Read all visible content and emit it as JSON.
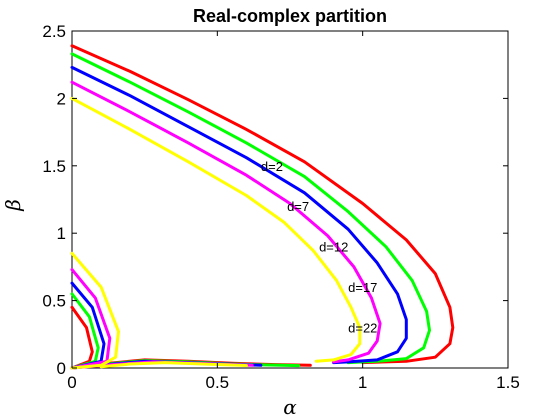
{
  "chart_data": {
    "type": "line",
    "title": "Real-complex partition",
    "xlabel": "α",
    "ylabel": "β",
    "xlim": [
      0,
      1.5
    ],
    "ylim": [
      0,
      2.5
    ],
    "xticks": [
      0,
      0.5,
      1,
      1.5
    ],
    "xtick_labels": [
      "0",
      "0.5",
      "1",
      "1.5"
    ],
    "yticks": [
      0,
      0.5,
      1,
      1.5,
      2,
      2.5
    ],
    "ytick_labels": [
      "0",
      "0.5",
      "1",
      "1.5",
      "2",
      "2.5"
    ],
    "grid": false,
    "legend": "none",
    "series": [
      {
        "name": "d=2",
        "color": "#ff0000",
        "branches": [
          [
            [
              0,
              2.39
            ],
            [
              0.2,
              2.2
            ],
            [
              0.4,
              1.99
            ],
            [
              0.6,
              1.77
            ],
            [
              0.8,
              1.53
            ],
            [
              1.0,
              1.22
            ],
            [
              1.15,
              0.95
            ],
            [
              1.25,
              0.7
            ],
            [
              1.3,
              0.45
            ],
            [
              1.31,
              0.3
            ],
            [
              1.3,
              0.18
            ],
            [
              1.25,
              0.08
            ],
            [
              1.15,
              0.05
            ],
            [
              1.0,
              0.04
            ]
          ],
          [
            [
              0,
              0.45
            ],
            [
              0.05,
              0.3
            ],
            [
              0.07,
              0.12
            ],
            [
              0.06,
              0.05
            ],
            [
              0,
              0
            ]
          ],
          [
            [
              0,
              0
            ],
            [
              0.1,
              0.03
            ],
            [
              0.25,
              0.06
            ],
            [
              0.4,
              0.05
            ],
            [
              0.55,
              0.035
            ],
            [
              0.7,
              0.025
            ],
            [
              0.82,
              0.02
            ]
          ]
        ]
      },
      {
        "name": "d=7",
        "color": "#00ff00",
        "branches": [
          [
            [
              0,
              2.33
            ],
            [
              0.2,
              2.12
            ],
            [
              0.4,
              1.9
            ],
            [
              0.6,
              1.67
            ],
            [
              0.8,
              1.42
            ],
            [
              0.95,
              1.16
            ],
            [
              1.08,
              0.9
            ],
            [
              1.17,
              0.65
            ],
            [
              1.22,
              0.42
            ],
            [
              1.23,
              0.28
            ],
            [
              1.21,
              0.15
            ],
            [
              1.15,
              0.07
            ],
            [
              1.05,
              0.05
            ],
            [
              0.95,
              0.04
            ]
          ],
          [
            [
              0,
              0.55
            ],
            [
              0.06,
              0.38
            ],
            [
              0.09,
              0.15
            ],
            [
              0.08,
              0.05
            ],
            [
              0,
              0
            ]
          ],
          [
            [
              0,
              0
            ],
            [
              0.12,
              0.03
            ],
            [
              0.25,
              0.055
            ],
            [
              0.4,
              0.045
            ],
            [
              0.55,
              0.03
            ],
            [
              0.68,
              0.022
            ],
            [
              0.78,
              0.018
            ]
          ]
        ]
      },
      {
        "name": "d=12",
        "color": "#0000ff",
        "branches": [
          [
            [
              0,
              2.23
            ],
            [
              0.2,
              2.02
            ],
            [
              0.4,
              1.79
            ],
            [
              0.6,
              1.56
            ],
            [
              0.8,
              1.3
            ],
            [
              0.95,
              1.03
            ],
            [
              1.05,
              0.78
            ],
            [
              1.12,
              0.55
            ],
            [
              1.15,
              0.36
            ],
            [
              1.15,
              0.22
            ],
            [
              1.12,
              0.12
            ],
            [
              1.05,
              0.06
            ],
            [
              0.95,
              0.045
            ],
            [
              0.9,
              0.04
            ]
          ],
          [
            [
              0,
              0.63
            ],
            [
              0.07,
              0.45
            ],
            [
              0.11,
              0.18
            ],
            [
              0.1,
              0.05
            ],
            [
              0,
              0
            ]
          ],
          [
            [
              0,
              0
            ],
            [
              0.12,
              0.025
            ],
            [
              0.25,
              0.05
            ],
            [
              0.4,
              0.04
            ],
            [
              0.55,
              0.028
            ],
            [
              0.65,
              0.02
            ]
          ]
        ]
      },
      {
        "name": "d=17",
        "color": "#ff00ff",
        "branches": [
          [
            [
              0,
              2.12
            ],
            [
              0.2,
              1.9
            ],
            [
              0.4,
              1.67
            ],
            [
              0.6,
              1.43
            ],
            [
              0.75,
              1.22
            ],
            [
              0.88,
              0.98
            ],
            [
              0.97,
              0.75
            ],
            [
              1.03,
              0.52
            ],
            [
              1.06,
              0.33
            ],
            [
              1.05,
              0.2
            ],
            [
              1.02,
              0.11
            ],
            [
              0.95,
              0.06
            ],
            [
              0.9,
              0.045
            ]
          ],
          [
            [
              0,
              0.73
            ],
            [
              0.08,
              0.52
            ],
            [
              0.13,
              0.22
            ],
            [
              0.12,
              0.05
            ],
            [
              0,
              0
            ]
          ],
          [
            [
              0,
              0
            ],
            [
              0.14,
              0.025
            ],
            [
              0.28,
              0.045
            ],
            [
              0.42,
              0.035
            ],
            [
              0.55,
              0.025
            ],
            [
              0.62,
              0.02
            ]
          ]
        ]
      },
      {
        "name": "d=22",
        "color": "#ffff00",
        "branches": [
          [
            [
              0,
              2.0
            ],
            [
              0.2,
              1.77
            ],
            [
              0.4,
              1.53
            ],
            [
              0.6,
              1.28
            ],
            [
              0.73,
              1.08
            ],
            [
              0.83,
              0.87
            ],
            [
              0.91,
              0.65
            ],
            [
              0.96,
              0.45
            ],
            [
              0.99,
              0.3
            ],
            [
              0.99,
              0.18
            ],
            [
              0.96,
              0.1
            ],
            [
              0.9,
              0.06
            ],
            [
              0.84,
              0.05
            ]
          ],
          [
            [
              0,
              0.85
            ],
            [
              0.1,
              0.6
            ],
            [
              0.16,
              0.27
            ],
            [
              0.15,
              0.08
            ],
            [
              0.1,
              0.02
            ],
            [
              0,
              0
            ]
          ],
          [
            [
              0.1,
              0.01
            ],
            [
              0.2,
              0.03
            ],
            [
              0.32,
              0.04
            ],
            [
              0.45,
              0.03
            ],
            [
              0.58,
              0.02
            ],
            [
              0.6,
              0.018
            ]
          ]
        ]
      }
    ],
    "annotations": [
      {
        "text": "d=2",
        "x": 0.65,
        "y": 1.5
      },
      {
        "text": "d=7",
        "x": 0.74,
        "y": 1.2
      },
      {
        "text": "d=12",
        "x": 0.85,
        "y": 0.9
      },
      {
        "text": "d=17",
        "x": 0.95,
        "y": 0.6
      },
      {
        "text": "d=22",
        "x": 0.95,
        "y": 0.3
      }
    ]
  }
}
